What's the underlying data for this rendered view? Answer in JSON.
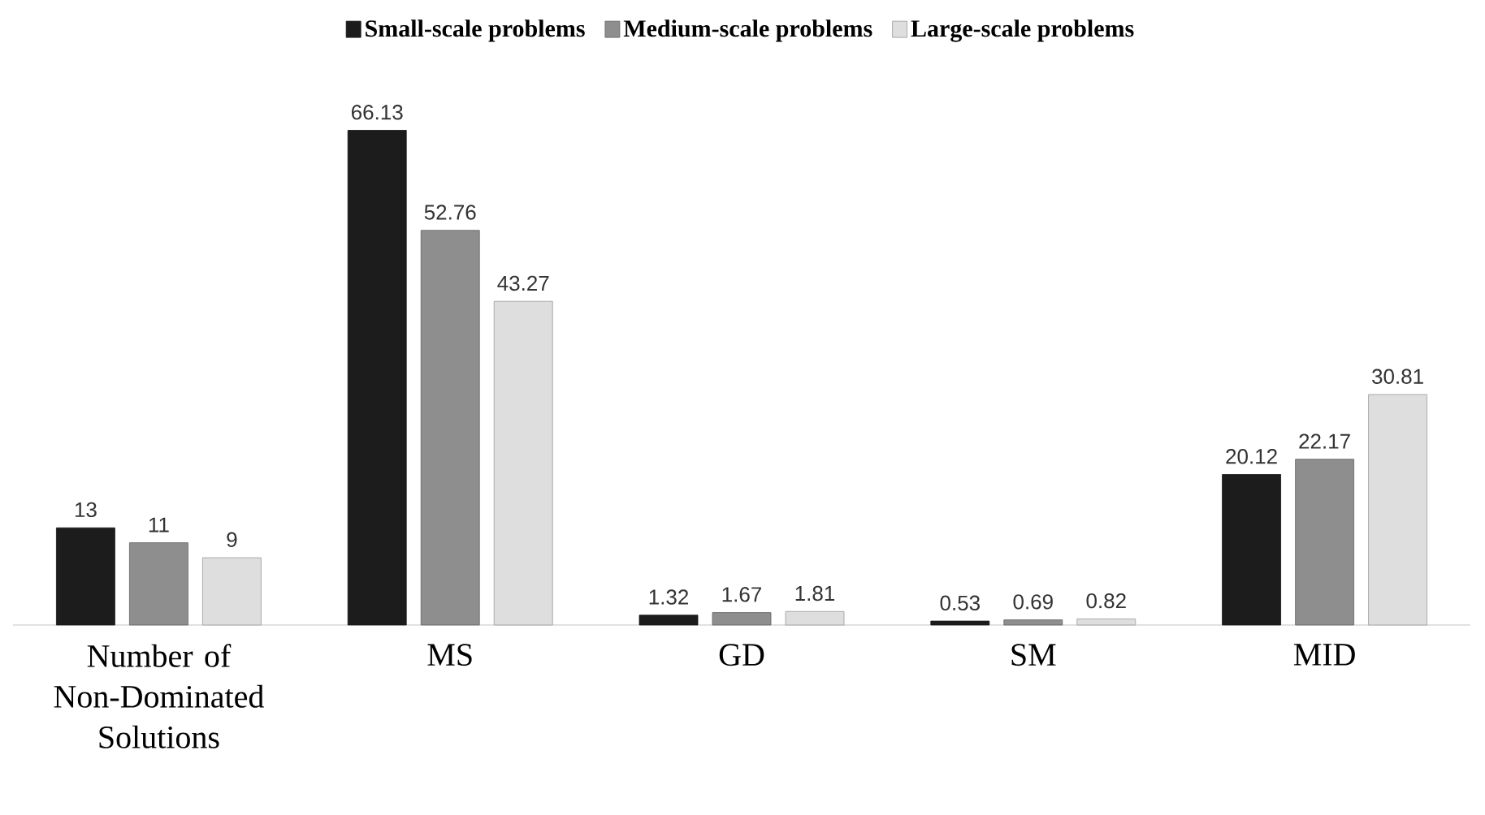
{
  "chart_data": {
    "type": "bar",
    "categories": [
      "Number of Non-Dominated Solutions",
      "MS",
      "GD",
      "SM",
      "MID"
    ],
    "series": [
      {
        "name": "Small-scale problems",
        "color": "#1c1c1c",
        "values": [
          13,
          66.13,
          1.32,
          0.53,
          20.12
        ]
      },
      {
        "name": "Medium-scale problems",
        "color": "#8e8e8e",
        "values": [
          11,
          52.76,
          1.67,
          0.69,
          22.17
        ]
      },
      {
        "name": "Large-scale problems",
        "color": "#dedede",
        "values": [
          9,
          43.27,
          1.81,
          0.82,
          30.81
        ]
      }
    ],
    "tick_labels": "x",
    "data_labels": true,
    "legend": "top"
  }
}
